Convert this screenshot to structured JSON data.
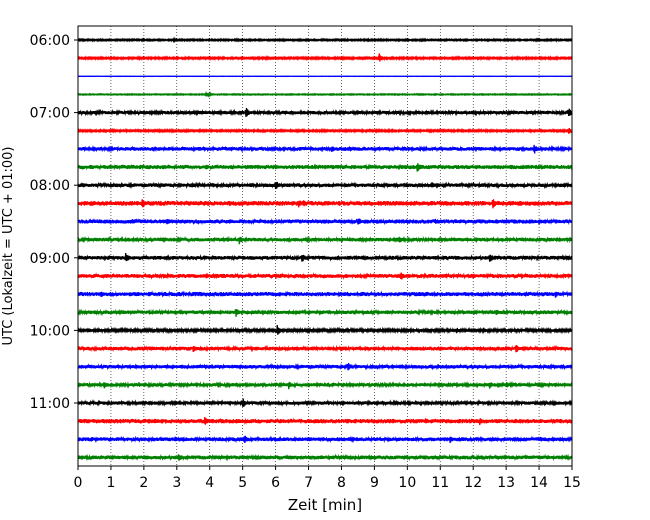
{
  "chart_data": {
    "type": "line",
    "title": "",
    "xlabel": "Zeit  [min]",
    "ylabel": "UTC (Lokalzeit = UTC + 01:00)",
    "xlim": [
      0,
      15
    ],
    "x_ticks": [
      0,
      1,
      2,
      3,
      4,
      5,
      6,
      7,
      8,
      9,
      10,
      11,
      12,
      13,
      14,
      15
    ],
    "y_tick_labels": [
      "06:00",
      "07:00",
      "08:00",
      "09:00",
      "10:00",
      "11:00"
    ],
    "y_tick_trace_index": [
      0,
      4,
      8,
      12,
      16,
      20
    ],
    "trace_interval_min": 15,
    "grid": "vertical dotted at each minute",
    "trace_colors": [
      "#000000",
      "#ff0000",
      "#0000ff",
      "#008000"
    ],
    "traces": [
      {
        "start": "06:00",
        "noise": 0.06,
        "events": [
          [
            2.9,
            0.15
          ],
          [
            5.5,
            0.12
          ]
        ]
      },
      {
        "start": "06:15",
        "noise": 0.07,
        "events": [
          [
            9.15,
            0.55
          ]
        ]
      },
      {
        "start": "06:30",
        "noise": 0.01,
        "events": []
      },
      {
        "start": "06:45",
        "noise": 0.04,
        "events": [
          [
            3.9,
            0.35
          ]
        ]
      },
      {
        "start": "07:00",
        "noise": 0.13,
        "events": [
          [
            5.1,
            0.6
          ],
          [
            7.7,
            0.15
          ],
          [
            14.9,
            0.6
          ]
        ]
      },
      {
        "start": "07:15",
        "noise": 0.07,
        "events": [
          [
            14.9,
            0.4
          ]
        ]
      },
      {
        "start": "07:30",
        "noise": 0.14,
        "events": [
          [
            7.7,
            0.45
          ],
          [
            13.85,
            0.6
          ]
        ]
      },
      {
        "start": "07:45",
        "noise": 0.16,
        "events": [
          [
            3.9,
            0.35
          ],
          [
            10.3,
            0.6
          ],
          [
            15.0,
            0.4
          ]
        ]
      },
      {
        "start": "08:00",
        "noise": 0.14,
        "events": [
          [
            0.15,
            0.3
          ],
          [
            6.0,
            0.65
          ],
          [
            10.75,
            0.4
          ],
          [
            10.9,
            0.4
          ]
        ]
      },
      {
        "start": "08:15",
        "noise": 0.18,
        "events": [
          [
            1.95,
            0.6
          ],
          [
            6.7,
            0.55
          ],
          [
            6.85,
            0.4
          ],
          [
            12.6,
            0.65
          ]
        ]
      },
      {
        "start": "08:30",
        "noise": 0.16,
        "events": [
          [
            1.65,
            0.3
          ],
          [
            2.7,
            0.45
          ],
          [
            8.5,
            0.55
          ],
          [
            10.85,
            0.3
          ],
          [
            14.0,
            0.4
          ]
        ]
      },
      {
        "start": "08:45",
        "noise": 0.14,
        "events": [
          [
            4.9,
            0.55
          ],
          [
            9.75,
            0.45
          ]
        ]
      },
      {
        "start": "09:00",
        "noise": 0.15,
        "events": [
          [
            1.45,
            0.65
          ],
          [
            5.0,
            0.3
          ],
          [
            6.8,
            0.55
          ],
          [
            12.5,
            0.6
          ]
        ]
      },
      {
        "start": "09:15",
        "noise": 0.15,
        "events": [
          [
            2.6,
            0.3
          ],
          [
            3.9,
            0.35
          ],
          [
            9.8,
            0.55
          ],
          [
            12.0,
            0.3
          ]
        ]
      },
      {
        "start": "09:30",
        "noise": 0.16,
        "events": [
          [
            0.7,
            0.45
          ],
          [
            6.1,
            0.35
          ],
          [
            14.5,
            0.4
          ]
        ]
      },
      {
        "start": "09:45",
        "noise": 0.14,
        "events": [
          [
            4.8,
            0.6
          ],
          [
            12.7,
            0.4
          ]
        ]
      },
      {
        "start": "10:00",
        "noise": 0.1,
        "events": [
          [
            0.35,
            0.3
          ],
          [
            2.3,
            0.3
          ],
          [
            6.05,
            0.65
          ],
          [
            11.5,
            0.35
          ],
          [
            12.3,
            0.4
          ]
        ]
      },
      {
        "start": "10:15",
        "noise": 0.15,
        "events": [
          [
            3.5,
            0.45
          ],
          [
            8.0,
            0.35
          ],
          [
            13.3,
            0.55
          ]
        ]
      },
      {
        "start": "10:30",
        "noise": 0.14,
        "events": [
          [
            4.3,
            0.25
          ],
          [
            8.2,
            0.55
          ]
        ]
      },
      {
        "start": "10:45",
        "noise": 0.13,
        "events": [
          [
            0.8,
            0.45
          ],
          [
            1.85,
            0.3
          ],
          [
            6.4,
            0.5
          ],
          [
            12.5,
            0.45
          ],
          [
            13.0,
            0.4
          ]
        ]
      },
      {
        "start": "11:00",
        "noise": 0.13,
        "events": [
          [
            5.0,
            0.6
          ],
          [
            10.25,
            0.3
          ]
        ]
      },
      {
        "start": "11:15",
        "noise": 0.17,
        "events": [
          [
            3.85,
            0.5
          ],
          [
            10.55,
            0.35
          ],
          [
            12.2,
            0.45
          ]
        ]
      },
      {
        "start": "11:30",
        "noise": 0.15,
        "events": [
          [
            0.4,
            0.3
          ],
          [
            2.95,
            0.35
          ],
          [
            5.05,
            0.55
          ],
          [
            11.3,
            0.45
          ],
          [
            14.05,
            0.35
          ]
        ]
      },
      {
        "start": "11:45",
        "noise": 0.15,
        "events": [
          [
            3.05,
            0.5
          ],
          [
            9.9,
            0.3
          ]
        ]
      }
    ]
  }
}
